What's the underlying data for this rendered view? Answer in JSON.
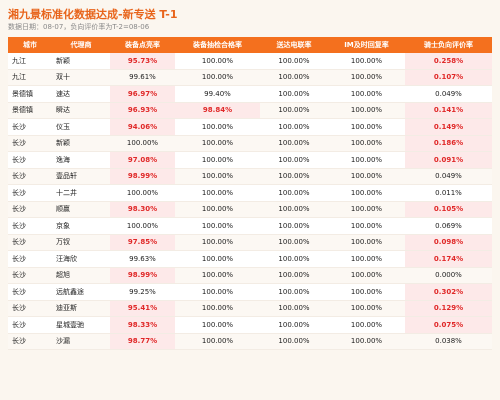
{
  "header": {
    "title": "湘九景标准化数据达成-新专送 T-1",
    "subtitle": "数据日期：08-07，负向评价率为T-2=08-06"
  },
  "table": {
    "columns": [
      "城市",
      "代理商",
      "装备点亮率",
      "装备抽检合格率",
      "送达电联率",
      "IM及时回复率",
      "骑士负向评价率"
    ],
    "rows": [
      {
        "cells": [
          "九江",
          "新颖",
          "95.73%",
          "100.00%",
          "100.00%",
          "100.00%",
          "0.258%"
        ],
        "alert": [
          2,
          6
        ]
      },
      {
        "cells": [
          "九江",
          "双十",
          "99.61%",
          "100.00%",
          "100.00%",
          "100.00%",
          "0.107%"
        ],
        "alert": [
          6
        ]
      },
      {
        "cells": [
          "景德镇",
          "速达",
          "96.97%",
          "99.40%",
          "100.00%",
          "100.00%",
          "0.049%"
        ],
        "alert": [
          2
        ]
      },
      {
        "cells": [
          "景德镇",
          "瞬达",
          "96.93%",
          "98.84%",
          "100.00%",
          "100.00%",
          "0.141%"
        ],
        "alert": [
          2,
          3,
          6
        ]
      },
      {
        "cells": [
          "长沙",
          "仪玉",
          "94.06%",
          "100.00%",
          "100.00%",
          "100.00%",
          "0.149%"
        ],
        "alert": [
          2,
          6
        ]
      },
      {
        "cells": [
          "长沙",
          "新颖",
          "100.00%",
          "100.00%",
          "100.00%",
          "100.00%",
          "0.186%"
        ],
        "alert": [
          6
        ]
      },
      {
        "cells": [
          "长沙",
          "逸海",
          "97.08%",
          "100.00%",
          "100.00%",
          "100.00%",
          "0.091%"
        ],
        "alert": [
          2,
          6
        ]
      },
      {
        "cells": [
          "长沙",
          "壹品轩",
          "98.99%",
          "100.00%",
          "100.00%",
          "100.00%",
          "0.049%"
        ],
        "alert": [
          2
        ]
      },
      {
        "cells": [
          "长沙",
          "十二井",
          "100.00%",
          "100.00%",
          "100.00%",
          "100.00%",
          "0.011%"
        ],
        "alert": []
      },
      {
        "cells": [
          "长沙",
          "顺赢",
          "98.30%",
          "100.00%",
          "100.00%",
          "100.00%",
          "0.105%"
        ],
        "alert": [
          2,
          6
        ]
      },
      {
        "cells": [
          "长沙",
          "京象",
          "100.00%",
          "100.00%",
          "100.00%",
          "100.00%",
          "0.069%"
        ],
        "alert": []
      },
      {
        "cells": [
          "长沙",
          "万钗",
          "97.85%",
          "100.00%",
          "100.00%",
          "100.00%",
          "0.098%"
        ],
        "alert": [
          2,
          6
        ]
      },
      {
        "cells": [
          "长沙",
          "汪海欣",
          "99.63%",
          "100.00%",
          "100.00%",
          "100.00%",
          "0.174%"
        ],
        "alert": [
          6
        ]
      },
      {
        "cells": [
          "长沙",
          "超旭",
          "98.99%",
          "100.00%",
          "100.00%",
          "100.00%",
          "0.000%"
        ],
        "alert": [
          2
        ]
      },
      {
        "cells": [
          "长沙",
          "远航鑫途",
          "99.25%",
          "100.00%",
          "100.00%",
          "100.00%",
          "0.302%"
        ],
        "alert": [
          6
        ]
      },
      {
        "cells": [
          "长沙",
          "迪亚斯",
          "95.41%",
          "100.00%",
          "100.00%",
          "100.00%",
          "0.129%"
        ],
        "alert": [
          2,
          6
        ]
      },
      {
        "cells": [
          "长沙",
          "星城壹驰",
          "98.33%",
          "100.00%",
          "100.00%",
          "100.00%",
          "0.075%"
        ],
        "alert": [
          2,
          6
        ]
      },
      {
        "cells": [
          "长沙",
          "沙漏",
          "98.77%",
          "100.00%",
          "100.00%",
          "100.00%",
          "0.038%"
        ],
        "alert": [
          2
        ]
      }
    ]
  }
}
